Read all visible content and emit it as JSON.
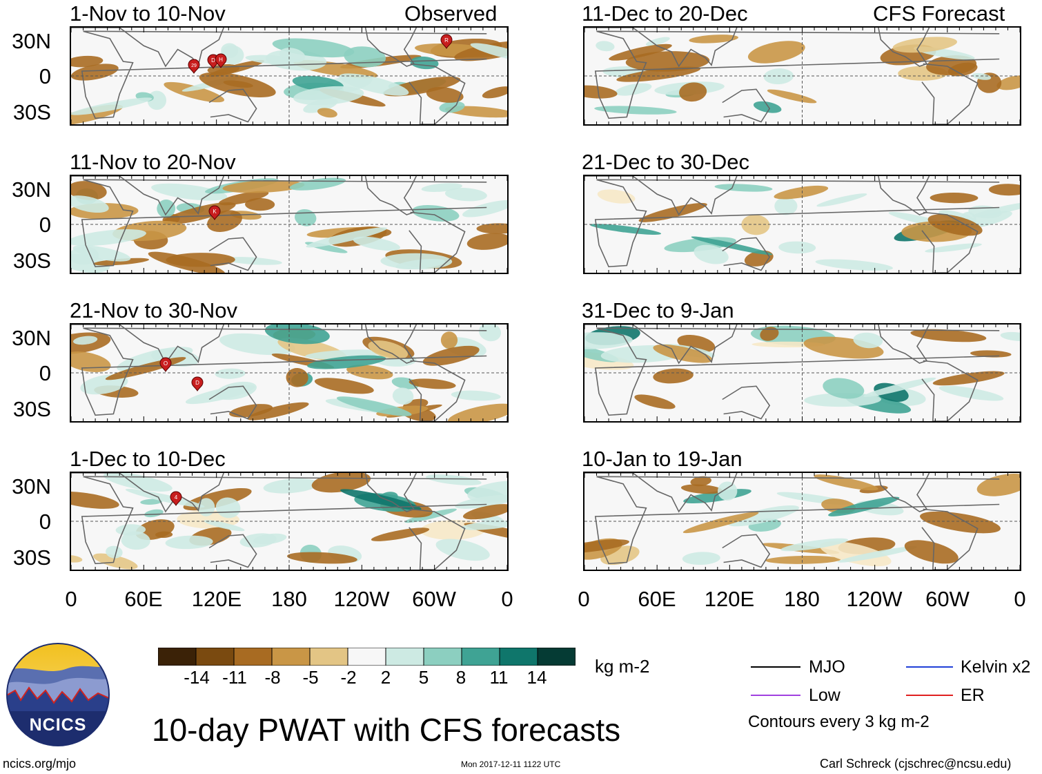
{
  "panels": [
    {
      "id": "obs1",
      "title": "1-Nov to 10-Nov",
      "label": "Observed"
    },
    {
      "id": "obs2",
      "title": "11-Nov to 20-Nov",
      "label": ""
    },
    {
      "id": "obs3",
      "title": "21-Nov to 30-Nov",
      "label": ""
    },
    {
      "id": "obs4",
      "title": "1-Dec to 10-Dec",
      "label": ""
    },
    {
      "id": "fc1",
      "title": "11-Dec to 20-Dec",
      "label": "CFS Forecast"
    },
    {
      "id": "fc2",
      "title": "21-Dec to 30-Dec",
      "label": ""
    },
    {
      "id": "fc3",
      "title": "31-Dec to 9-Jan",
      "label": ""
    },
    {
      "id": "fc4",
      "title": "10-Jan to 19-Jan",
      "label": ""
    }
  ],
  "axes": {
    "y_ticks": [
      "30N",
      "0",
      "30S"
    ],
    "x_ticks": [
      "0",
      "60E",
      "120E",
      "180",
      "120W",
      "60W",
      "0"
    ]
  },
  "storm_markers": [
    {
      "panel": "obs1",
      "label": "29"
    },
    {
      "panel": "obs1",
      "label": "D"
    },
    {
      "panel": "obs1",
      "label": "H"
    },
    {
      "panel": "obs1",
      "label": "R"
    },
    {
      "panel": "obs2",
      "label": "K"
    },
    {
      "panel": "obs3",
      "label": "O"
    },
    {
      "panel": "obs3",
      "label": "D"
    },
    {
      "panel": "obs4",
      "label": "4"
    }
  ],
  "colorbar": {
    "ticks": [
      "-14",
      "-11",
      "-8",
      "-5",
      "-2",
      "2",
      "5",
      "8",
      "11",
      "14"
    ],
    "units": "kg m-2",
    "colors": [
      "#3b2207",
      "#7a4a10",
      "#a86b22",
      "#c99646",
      "#e3c585",
      "#f6e8c6",
      "#f7f7f7",
      "#cdeae3",
      "#8ccfc0",
      "#3fa394",
      "#0f766b",
      "#0a5b52",
      "#053b34"
    ]
  },
  "legend": {
    "items": [
      {
        "label": "MJO",
        "color": "#000000"
      },
      {
        "label": "Kelvin x2",
        "color": "#1f3fd8"
      },
      {
        "label": "Low",
        "color": "#a040e0"
      },
      {
        "label": "ER",
        "color": "#e02020"
      }
    ],
    "contour_note": "Contours every 3 kg m-2"
  },
  "main_title": "10-day PWAT with CFS forecasts",
  "footer": {
    "url": "ncics.org/mjo",
    "timestamp": "Mon 2017-12-11 1122 UTC",
    "credit": "Carl Schreck (cjschrec@ncsu.edu)"
  },
  "logo": {
    "text": "NCICS"
  }
}
